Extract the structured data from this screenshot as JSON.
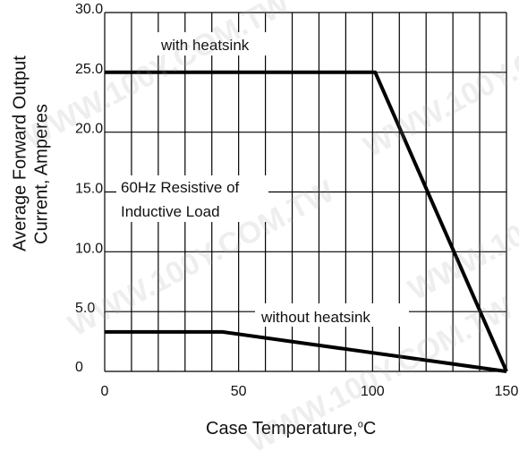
{
  "chart_data": {
    "type": "line",
    "x_ticks": [
      "0",
      "50",
      "100",
      "150"
    ],
    "y_ticks": [
      "0",
      "5.0",
      "10.0",
      "15.0",
      "20.0",
      "25.0",
      "30.0"
    ],
    "x_tick_values": [
      0,
      50,
      100,
      150
    ],
    "y_tick_values": [
      0,
      5,
      10,
      15,
      20,
      25,
      30
    ],
    "xlim": [
      0,
      150
    ],
    "ylim": [
      0,
      30
    ],
    "xlabel_main": "Case Temperature,",
    "xlabel_unit_sup": "o",
    "xlabel_unit": "C",
    "ylabel_line1": "Average Forward Output",
    "ylabel_line2": "Current, Amperes",
    "grid": true,
    "series": [
      {
        "label": "with heatsink",
        "points": [
          [
            0,
            25
          ],
          [
            101,
            25
          ],
          [
            150,
            0
          ]
        ]
      },
      {
        "label": "without heatsink",
        "points": [
          [
            0,
            3.3
          ],
          [
            44,
            3.3
          ],
          [
            150,
            0
          ]
        ]
      }
    ],
    "annotations": {
      "with_heatsink": "with heatsink",
      "without_heatsink": "without heatsink",
      "load_line1": "60Hz Resistive of",
      "load_line2": "Inductive Load"
    }
  },
  "watermark_text": "WWW.100Y.COM.TW"
}
